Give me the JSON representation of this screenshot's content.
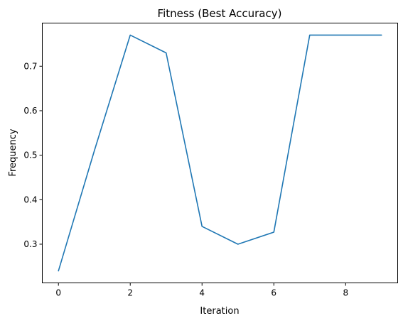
{
  "chart_data": {
    "type": "line",
    "title": "Fitness (Best Accuracy)",
    "xlabel": "Iteration",
    "ylabel": "Frequency",
    "xlim": [
      -0.45,
      9.45
    ],
    "ylim": [
      0.213,
      0.797
    ],
    "xticks": [
      0,
      2,
      4,
      6,
      8
    ],
    "xtick_labels": [
      "0",
      "2",
      "4",
      "6",
      "8"
    ],
    "yticks": [
      0.3,
      0.4,
      0.5,
      0.6,
      0.7
    ],
    "ytick_labels": [
      "0.3",
      "0.4",
      "0.5",
      "0.6",
      "0.7"
    ],
    "grid": false,
    "series": [
      {
        "color": "#1f77b4",
        "x": [
          0,
          1,
          2,
          3,
          4,
          5,
          6,
          7,
          8,
          9
        ],
        "y": [
          0.24,
          0.51,
          0.77,
          0.73,
          0.34,
          0.3,
          0.327,
          0.77,
          0.77,
          0.77
        ]
      }
    ]
  }
}
